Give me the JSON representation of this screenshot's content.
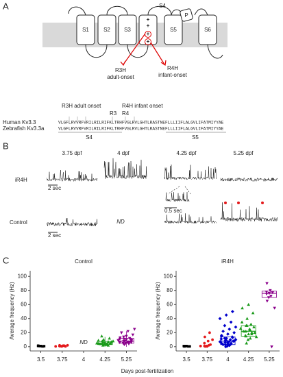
{
  "panel_a": {
    "label": "A",
    "s4_top": "S4",
    "segments": [
      "S1",
      "S2",
      "S3",
      "S5",
      "S6"
    ],
    "pore": "P",
    "charges": [
      "+",
      "+",
      "+",
      "+"
    ],
    "r3h": {
      "name": "R3H",
      "onset": "adult-onset"
    },
    "r4h": {
      "name": "R4H",
      "onset": "infant-onset"
    },
    "alignment": {
      "r3h_label": "R3H adult onset",
      "r4h_label": "R4H infant onset",
      "r3": "R3",
      "r4": "R4",
      "rows": [
        {
          "name": "Human Kv3.3",
          "sequence": "VLGFLRVVRFVRILRILRIFKLTRHFVGLRVLGHTLRASTNEFLLLIIFLALGVLIFATMIYYAE"
        },
        {
          "name": "Zebrafish Kv3.3a",
          "sequence": "VLGFLRVVRFVRILRILRIFKLTRHFVGLRVLGHTLRASTNEFLLLIIFLALGVLIFATMIYYAE"
        }
      ],
      "s4": "S4",
      "s5": "S5"
    }
  },
  "panel_b": {
    "label": "B",
    "columns": [
      "3.75 dpf",
      "4 dpf",
      "4.25 dpf",
      "5.25 dpf"
    ],
    "rows": [
      "iR4H",
      "Control"
    ],
    "scale": "2 sec",
    "inset_scale": "0.5 sec",
    "not_determined": "ND"
  },
  "panel_c_label": "C",
  "x_label": "Days post-fertilization",
  "chart_data": [
    {
      "type": "box-scatter",
      "title": "Control",
      "y_label": "Average frequency (Hz)",
      "categories": [
        "3.5",
        "3.75",
        "4",
        "4.25",
        "5.25"
      ],
      "colors": [
        "#000000",
        "#e41a1c",
        "#0000cc",
        "#1a9a1a",
        "#8b008b"
      ],
      "ylim": [
        -6,
        108
      ],
      "yticks": [
        0,
        20,
        40,
        60,
        80,
        100
      ],
      "points": [
        [
          1,
          1,
          0.5,
          1.5,
          1,
          0.8,
          1.2
        ],
        [
          1,
          0.5,
          1.5,
          2,
          1,
          0.5,
          1,
          1.5,
          2,
          0.8,
          1.2,
          0.5
        ],
        [],
        [
          2,
          3,
          4,
          5,
          6,
          7,
          8,
          4,
          5,
          6,
          3,
          9,
          10,
          12,
          5,
          6,
          7,
          4,
          3,
          8,
          15,
          2,
          5,
          6
        ],
        [
          3,
          5,
          6,
          8,
          10,
          12,
          14,
          7,
          9,
          11,
          4,
          6,
          8,
          10,
          13,
          15,
          17,
          20,
          22,
          25,
          5,
          7,
          9,
          8,
          6,
          11
        ]
      ],
      "boxes": [
        null,
        null,
        null,
        {
          "q1": 3,
          "median": 5,
          "q3": 7.5,
          "whisker_low": 0,
          "whisker_high": 14
        },
        {
          "q1": 5,
          "median": 8,
          "q3": 12,
          "whisker_low": 0,
          "whisker_high": 22
        }
      ],
      "annotations": [
        {
          "text": "ND",
          "x": "4",
          "y": 6
        }
      ]
    },
    {
      "type": "box-scatter",
      "title": "iR4H",
      "y_label": "Average frequency (Hz)",
      "categories": [
        "3.5",
        "3.75",
        "4",
        "4.25",
        "5.25"
      ],
      "colors": [
        "#000000",
        "#e41a1c",
        "#0000cc",
        "#1a9a1a",
        "#8b008b"
      ],
      "ylim": [
        -6,
        108
      ],
      "yticks": [
        0,
        20,
        40,
        60,
        80,
        100
      ],
      "points": [
        [
          0.5,
          1,
          0.5,
          1,
          1,
          0.5
        ],
        [
          0.5,
          1,
          2,
          1,
          0.5,
          3,
          5,
          8,
          10,
          14,
          20,
          1,
          0.5
        ],
        [
          0,
          1,
          2,
          3,
          4,
          5,
          6,
          7,
          8,
          9,
          10,
          11,
          12,
          14,
          16,
          18,
          20,
          22,
          25,
          28,
          30,
          35,
          40,
          45,
          50,
          5,
          6,
          8,
          3,
          2,
          10,
          12,
          4,
          7,
          9,
          13,
          15
        ],
        [
          5,
          10,
          12,
          15,
          18,
          20,
          22,
          25,
          28,
          30,
          32,
          35,
          40,
          48,
          55,
          60,
          20,
          22,
          24,
          14,
          16,
          18,
          26,
          30
        ],
        [
          65,
          70,
          72,
          75,
          76,
          77,
          78,
          80,
          55,
          90,
          0
        ]
      ],
      "boxes": [
        null,
        null,
        {
          "q1": 3,
          "median": 8,
          "q3": 14
        },
        {
          "q1": 15,
          "median": 22,
          "q3": 30
        },
        {
          "q1": 70,
          "median": 76,
          "q3": 79
        }
      ],
      "annotations": []
    }
  ]
}
